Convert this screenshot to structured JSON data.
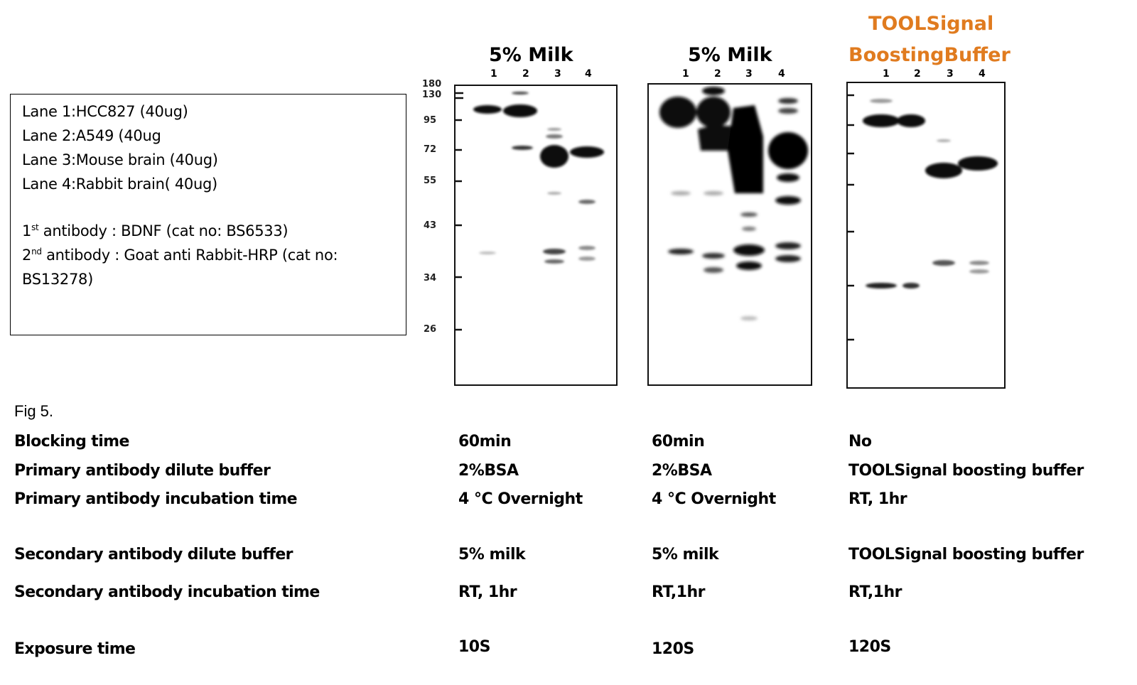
{
  "legend": {
    "lanes": [
      "Lane 1:HCC827 (40ug)",
      "Lane 2:A549  (40ug",
      "Lane 3:Mouse brain (40ug)",
      "Lane 4:Rabbit brain( 40ug)"
    ],
    "primary": {
      "ord": "1",
      "sup": "st",
      "text": " antibody : BDNF (cat no: BS6533)"
    },
    "secondary": {
      "ord": "2",
      "sup": "nd",
      "text": "  antibody : Goat anti Rabbit-HRP (cat no:",
      "text2": "BS13278)"
    }
  },
  "panels": [
    {
      "title": "5% Milk",
      "lanes": [
        "1",
        "2",
        "3",
        "4"
      ]
    },
    {
      "title": "5% Milk",
      "lanes": [
        "1",
        "2",
        "3",
        "4"
      ]
    },
    {
      "title_line1": "TOOLSignal",
      "title_line2": "BoostingBuffer",
      "lanes": [
        "1",
        "2",
        "3",
        "4"
      ]
    }
  ],
  "markers": [
    "180",
    "130",
    "95",
    "72",
    "55",
    "43",
    "34",
    "26"
  ],
  "fig_label": "Fig 5.",
  "rows": [
    {
      "label": "Blocking time",
      "values": [
        "60min",
        "60min",
        "No"
      ]
    },
    {
      "label": "Primary antibody dilute buffer",
      "values": [
        "2%BSA",
        "2%BSA",
        "TOOLSignal boosting buffer"
      ]
    },
    {
      "label": "Primary antibody incubation time",
      "values": [
        "4 °C  Overnight",
        "4 °C  Overnight",
        "RT, 1hr"
      ]
    },
    {
      "label": "Secondary antibody dilute buffer",
      "values": [
        "5% milk",
        "5% milk",
        "TOOLSignal boosting buffer"
      ]
    },
    {
      "label": "Secondary antibody incubation time",
      "values": [
        "RT, 1hr",
        "RT,1hr",
        "RT,1hr"
      ]
    },
    {
      "label": "Exposure time",
      "values": [
        "10S",
        "120S",
        "120S"
      ]
    }
  ],
  "colors": {
    "title_accent": "#e07b1f"
  }
}
